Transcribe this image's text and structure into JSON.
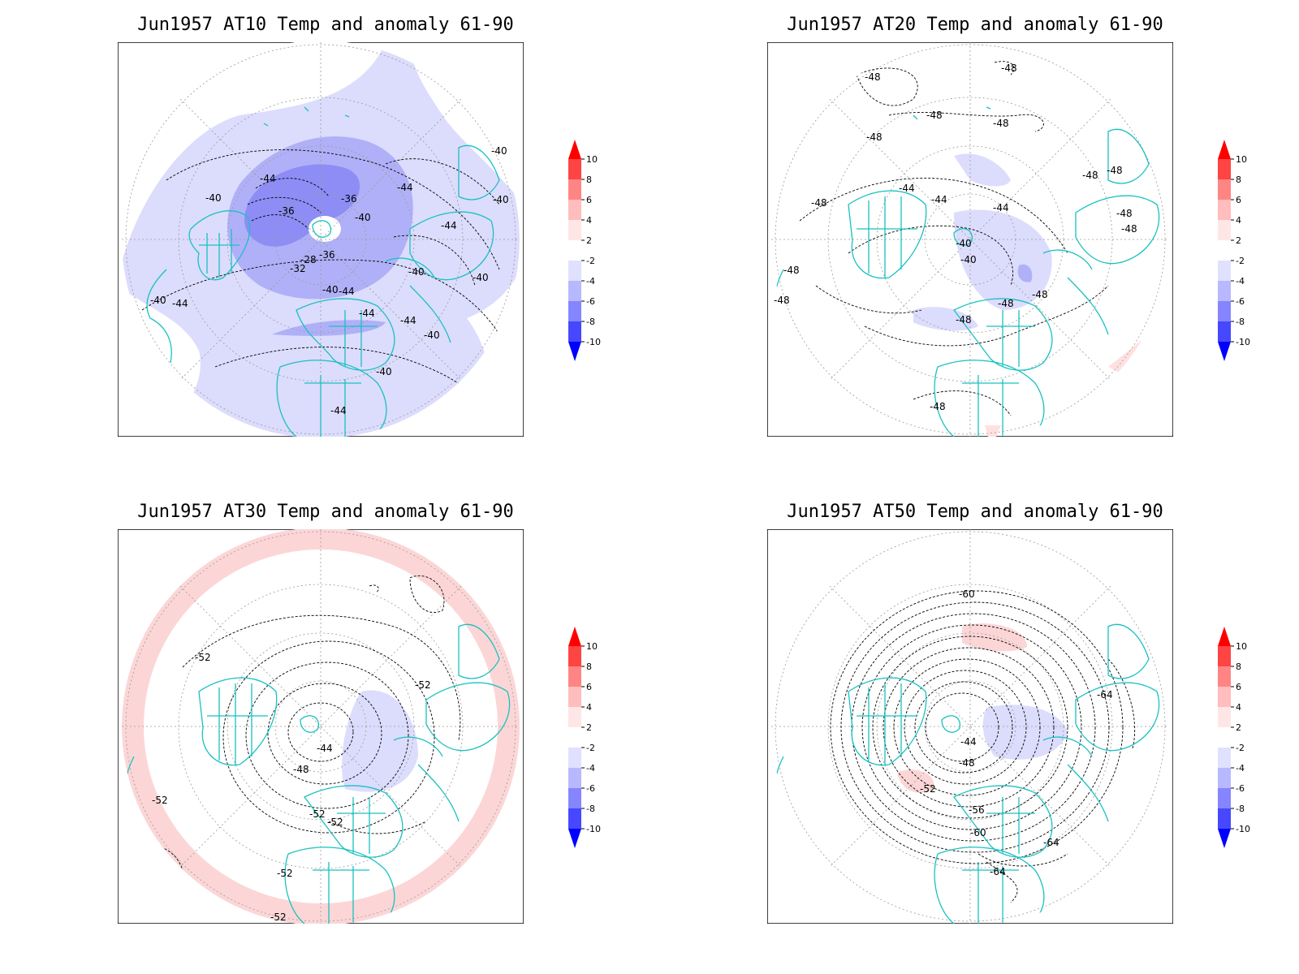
{
  "panels": [
    {
      "title": "Jun1957 AT10 Temp and anomaly 61-90",
      "contour_labels": [
        "-44",
        "-40",
        "-36",
        "-36",
        "-40",
        "-36",
        "-32",
        "-28",
        "-40",
        "-44",
        "-40",
        "-44",
        "-40",
        "-44",
        "-40",
        "-44",
        "-40",
        "-40",
        "-44",
        "-44",
        "-40",
        "-40",
        "-44"
      ]
    },
    {
      "title": "Jun1957 AT20 Temp and anomaly 61-90",
      "contour_labels": [
        "-48",
        "-48",
        "-48",
        "-48",
        "-48",
        "-44",
        "-44",
        "-44",
        "-40",
        "-40",
        "-48",
        "-48",
        "-48",
        "-48",
        "-48",
        "-48",
        "-48",
        "-48",
        "-48",
        "-48",
        "-48"
      ]
    },
    {
      "title": "Jun1957 AT30 Temp and anomaly 61-90",
      "contour_labels": [
        "-52",
        "-52",
        "-44",
        "-48",
        "-52",
        "-52",
        "-52",
        "-52",
        "-52"
      ]
    },
    {
      "title": "Jun1957 AT50 Temp and anomaly 61-90",
      "contour_labels": [
        "-60",
        "-64",
        "-44",
        "-48",
        "-52",
        "-56",
        "-60",
        "-64",
        "-64"
      ]
    }
  ],
  "colorbar": {
    "labels": [
      "10",
      "8",
      "6",
      "4",
      "2",
      "-2",
      "-4",
      "-6",
      "-8",
      "-10"
    ],
    "colors": [
      "#ff0000",
      "#ff4444",
      "#ff8585",
      "#ffbdbd",
      "#ffe6e6",
      "#ffffff",
      "#e0e0ff",
      "#b8b8ff",
      "#8585ff",
      "#4747ff",
      "#0000ff"
    ]
  },
  "colors": {
    "coastline": "#19c1c1",
    "contour": "#000000",
    "frame": "#000000"
  }
}
